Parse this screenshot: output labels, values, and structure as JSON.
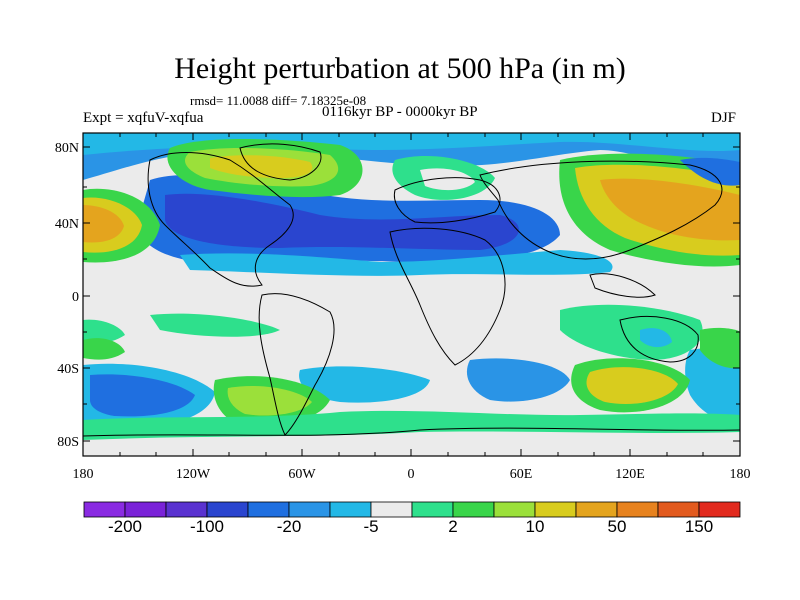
{
  "header": {
    "title": "Height perturbation at 500 hPa (in m)",
    "stats": "rmsd= 11.0088 diff= 7.18325e-08",
    "experiment": "Expt = xqfuV-xqfua",
    "period": "0116kyr BP - 0000kyr BP",
    "season": "DJF"
  },
  "axes": {
    "y_labels": [
      "80N",
      "40N",
      "0",
      "40S",
      "80S"
    ],
    "x_labels": [
      "180",
      "120W",
      "60W",
      "0",
      "60E",
      "120E",
      "180"
    ]
  },
  "colorbar": {
    "colors": [
      "#8a2be2",
      "#7a22d8",
      "#5a32d0",
      "#2a45cf",
      "#1f6fe0",
      "#2a94e6",
      "#23b8e6",
      "#ebebeb",
      "#2ee08c",
      "#39d54a",
      "#9be03a",
      "#d8cc1e",
      "#e4a41e",
      "#e7821e",
      "#e25a1e",
      "#e22a1e"
    ],
    "labels": [
      "-200",
      "-100",
      "-20",
      "-5",
      "2",
      "10",
      "50",
      "150"
    ]
  }
}
